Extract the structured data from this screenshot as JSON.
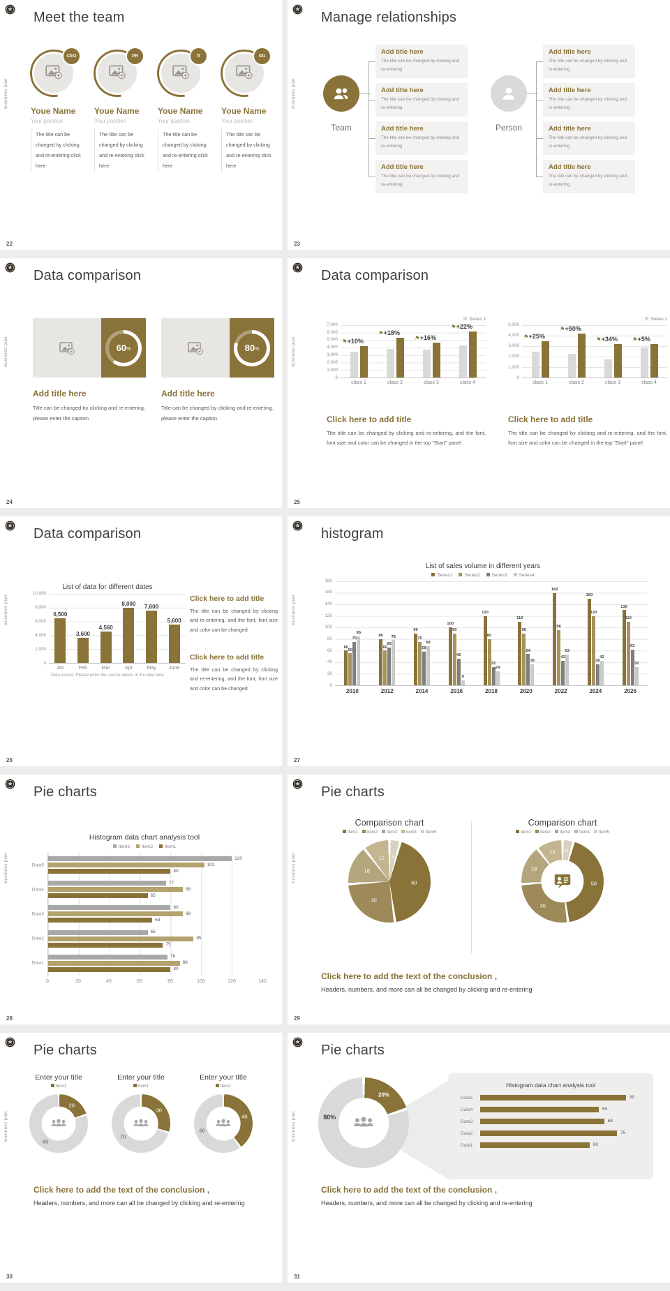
{
  "theme": {
    "accent": "#8a7339",
    "tan": "#b3a26d",
    "gold2": "#a6945e",
    "gray_light": "#d9d9d9",
    "gray_mid": "#a6a6a6",
    "gray_dark": "#7f7f7f"
  },
  "common": {
    "side_label": "Business plan"
  },
  "slides": [
    {
      "num": "22",
      "title": "Meet the team",
      "members": [
        {
          "badge": "CEO",
          "name": "Youe Name",
          "position": "Your position",
          "desc": "The title can be changed by clicking and re-entering click here"
        },
        {
          "badge": "PR",
          "name": "Youe Name",
          "position": "Your position",
          "desc": "The title can be changed by clicking and re-entering click here"
        },
        {
          "badge": "IT",
          "name": "Youe Name",
          "position": "Your position",
          "desc": "The title can be changed by clicking and re-entering click here"
        },
        {
          "badge": "GD",
          "name": "Youe Name",
          "position": "Your position",
          "desc": "The title can be changed by clicking and re-entering click here"
        }
      ]
    },
    {
      "num": "23",
      "title": "Manage relationships",
      "groups": [
        {
          "label": "Team",
          "icon": "team",
          "circle_color": "#8a7339",
          "boxes": [
            {
              "title": "Add title here",
              "text": "The title can be changed by clicking and re-entering"
            },
            {
              "title": "Add title here",
              "text": "The title can be changed by clicking and re-entering"
            },
            {
              "title": "Add title here",
              "text": "The title can be changed by clicking and re-entering"
            },
            {
              "title": "Add title here",
              "text": "The title can be changed by clicking and re-entering"
            }
          ]
        },
        {
          "label": "Person",
          "icon": "person",
          "circle_color": "#d9d9d9",
          "boxes": [
            {
              "title": "Add title here",
              "text": "The title can be changed by clicking and re-entering"
            },
            {
              "title": "Add title here",
              "text": "The title can be changed by clicking and re-entering"
            },
            {
              "title": "Add title here",
              "text": "The title can be changed by clicking and re-entering"
            },
            {
              "title": "Add title here",
              "text": "The title can be changed by clicking and re-entering"
            }
          ]
        }
      ]
    },
    {
      "num": "24",
      "title": "Data comparison",
      "cards": [
        {
          "percent": "60",
          "sign": "%",
          "heading": "Add title here",
          "caption": "Title can be changed by clicking and re-entering, please enter the caption"
        },
        {
          "percent": "80",
          "sign": "%",
          "heading": "Add title here",
          "caption": "Title can be changed by clicking and re-entering, please enter the caption"
        }
      ]
    },
    {
      "num": "25",
      "title": "Data comparison",
      "blocks": [
        {
          "heading": "Click here to add title",
          "caption": "The title can be changed by clicking and re-entering, and the font, font size and color can be changed in the top \"Start\" panel"
        },
        {
          "heading": "Click here to add title",
          "caption": "The title can be changed by clicking and re-entering, and the font, font size and color can be changed in the top \"Start\" panel"
        }
      ]
    },
    {
      "num": "26",
      "title": "Data comparison",
      "blocks": [
        {
          "heading": "Click here to add title",
          "caption": "The title can be changed by clicking and re-entering, and the font, font size and color can be changed"
        },
        {
          "heading": "Click here to add title",
          "caption": "The title can be changed by clicking and re-entering, and the font, font size and color can be changed"
        }
      ]
    },
    {
      "num": "27",
      "title": "histogram"
    },
    {
      "num": "28",
      "title": "Pie charts"
    },
    {
      "num": "29",
      "title": "Pie charts",
      "conclusion": {
        "heading": "Click here to add the text of the conclusion ,",
        "text": "Headers, numbers, and more can all be changed by clicking and re-entering"
      }
    },
    {
      "num": "30",
      "title": "Pie charts",
      "conclusion": {
        "heading": "Click here to add the text of the conclusion ,",
        "text": "Headers, numbers, and more can all be changed by clicking and re-entering"
      }
    },
    {
      "num": "31",
      "title": "Pie charts",
      "conclusion": {
        "heading": "Click here to add the text of the conclusion ,",
        "text": "Headers, numbers, and more can all be changed by clicking and re-entering"
      }
    }
  ],
  "chart_data": [
    {
      "id": "growth-left",
      "type": "bar",
      "legend": [
        {
          "label": "Series 1",
          "color": "#d9d9d9"
        }
      ],
      "categories": [
        "class 1",
        "class 2",
        "class 3",
        "class 4"
      ],
      "series": [
        {
          "name": "Series 1",
          "color": "#d9d9d9",
          "values": [
            3500,
            3800,
            3700,
            4300
          ]
        },
        {
          "name": "Highlight",
          "color": "#8a7339",
          "values": [
            4200,
            5300,
            4700,
            6200
          ]
        }
      ],
      "growth_labels": [
        "+10%",
        "+18%",
        "+16%",
        "+22%"
      ],
      "ymax": 7000,
      "yticks": [
        {
          "label": "7,000",
          "v": 7000
        },
        {
          "label": "6,000",
          "v": 6000
        },
        {
          "label": "5,000",
          "v": 5000
        },
        {
          "label": "4,000",
          "v": 4000
        },
        {
          "label": "3,000",
          "v": 3000
        },
        {
          "label": "2,000",
          "v": 2000
        },
        {
          "label": "1,000",
          "v": 1000
        },
        {
          "label": "0",
          "v": 0
        }
      ]
    },
    {
      "id": "growth-right",
      "type": "bar",
      "legend": [
        {
          "label": "Series 1",
          "color": "#d9d9d9"
        }
      ],
      "categories": [
        "class 1",
        "class 2",
        "class 3",
        "class 4"
      ],
      "series": [
        {
          "name": "Series 1",
          "color": "#d9d9d9",
          "values": [
            2500,
            2300,
            1750,
            2900
          ]
        },
        {
          "name": "Highlight",
          "color": "#8a7339",
          "values": [
            3500,
            4200,
            3200,
            3200
          ]
        }
      ],
      "growth_labels": [
        "+25%",
        "+50%",
        "+34%",
        "+5%"
      ],
      "ymax": 5000,
      "yticks": [
        {
          "label": "5,000",
          "v": 5000
        },
        {
          "label": "4,000",
          "v": 4000
        },
        {
          "label": "3,000",
          "v": 3000
        },
        {
          "label": "2,000",
          "v": 2000
        },
        {
          "label": "1,000",
          "v": 1000
        },
        {
          "label": "0",
          "v": 0
        }
      ]
    },
    {
      "id": "dates",
      "type": "bar",
      "title": "List of data for different dates",
      "categories": [
        "Jan",
        "Feb",
        "Mar",
        "Apr",
        "May",
        "June"
      ],
      "series": [
        {
          "name": "Data",
          "color": "#8a7339",
          "values": [
            6500,
            3600,
            4560,
            8000,
            7600,
            5600
          ],
          "labels": [
            "6,500",
            "3,600",
            "4,560",
            "8,000",
            "7,600",
            "5,600"
          ]
        }
      ],
      "ymax": 10000,
      "yticks": [
        {
          "label": "10,000",
          "v": 10000
        },
        {
          "label": "8,000",
          "v": 8000
        },
        {
          "label": "6,000",
          "v": 6000
        },
        {
          "label": "4,000",
          "v": 4000
        },
        {
          "label": "2,000",
          "v": 2000
        },
        {
          "label": "0",
          "v": 0
        }
      ],
      "footnote": "Data source: Please enter the source details of the data here"
    },
    {
      "id": "years",
      "type": "bar",
      "title": "List of sales volume in different years",
      "legend": [
        {
          "label": "Series1",
          "color": "#8a7339"
        },
        {
          "label": "Series2",
          "color": "#a6945e"
        },
        {
          "label": "Series3",
          "color": "#7f7f7f"
        },
        {
          "label": "Series4",
          "color": "#c9c9c9"
        }
      ],
      "categories": [
        "2010",
        "2012",
        "2014",
        "2016",
        "2018",
        "2020",
        "2022",
        "2024",
        "2026"
      ],
      "series": [
        {
          "name": "Series1",
          "color": "#8a7339",
          "values": [
            60,
            80,
            90,
            100,
            120,
            110,
            160,
            150,
            130
          ],
          "labels": [
            "60",
            "80",
            "90",
            "100",
            "120",
            "110",
            "160",
            "150",
            "130"
          ]
        },
        {
          "name": "Series2",
          "color": "#a6945e",
          "values": [
            55,
            60,
            75,
            90,
            80,
            90,
            96,
            120,
            110
          ],
          "labels": [
            "55",
            "60",
            "75",
            "90",
            "80",
            "90",
            "96",
            "120",
            "110"
          ]
        },
        {
          "name": "Series3",
          "color": "#7f7f7f",
          "values": [
            75,
            65,
            58,
            46,
            32,
            54,
            42,
            36,
            62
          ],
          "labels": [
            "75",
            "65",
            "58",
            "46",
            "32",
            "54",
            "42",
            "36",
            "62"
          ]
        },
        {
          "name": "Series4",
          "color": "#c9c9c9",
          "values": [
            85,
            78,
            68,
            9,
            24,
            36,
            53,
            42,
            32
          ],
          "labels": [
            "85",
            "78",
            "68",
            "9",
            "24",
            "36",
            "53",
            "42",
            "32"
          ]
        }
      ],
      "ymax": 180,
      "yticks": [
        {
          "label": "180",
          "v": 180
        },
        {
          "label": "160",
          "v": 160
        },
        {
          "label": "140",
          "v": 140
        },
        {
          "label": "120",
          "v": 120
        },
        {
          "label": "100",
          "v": 100
        },
        {
          "label": "80",
          "v": 80
        },
        {
          "label": "60",
          "v": 60
        },
        {
          "label": "40",
          "v": 40
        },
        {
          "label": "20",
          "v": 20
        },
        {
          "label": "0",
          "v": 0
        }
      ]
    },
    {
      "id": "analysis",
      "type": "hbar",
      "title": "Histogram data chart analysis tool",
      "legend": [
        {
          "label": "Item3",
          "color": "#a8a8a8"
        },
        {
          "label": "Item2",
          "color": "#b3a26d"
        },
        {
          "label": "Item1",
          "color": "#8a7339"
        }
      ],
      "categories": [
        "Data5",
        "Data4",
        "Data3",
        "Data2",
        "Data1"
      ],
      "series": [
        {
          "name": "Item3",
          "color": "#a8a8a8",
          "values": [
            120,
            77,
            80,
            65,
            78
          ]
        },
        {
          "name": "Item2",
          "color": "#b3a26d",
          "values": [
            102,
            88,
            88,
            95,
            86
          ]
        },
        {
          "name": "Item1",
          "color": "#8a7339",
          "values": [
            80,
            65,
            68,
            75,
            80
          ]
        }
      ],
      "xmax": 140,
      "xticks": [
        0,
        20,
        40,
        60,
        80,
        100,
        120,
        140
      ]
    },
    {
      "id": "cmp-pie",
      "type": "pie",
      "title": "Comparison chart",
      "legend": [
        {
          "label": "Item1",
          "color": "#8a7339"
        },
        {
          "label": "Item2",
          "color": "#9d8a58"
        },
        {
          "label": "Item3",
          "color": "#b4a67c"
        },
        {
          "label": "Item4",
          "color": "#c3b58f"
        },
        {
          "label": "Item5",
          "color": "#d8d1bd"
        }
      ],
      "slices": [
        {
          "label": "5",
          "value": 5,
          "color": "#d8d1bd",
          "label_color": "#fff"
        },
        {
          "label": "50",
          "value": 50,
          "color": "#8a7339",
          "label_color": "#fff"
        },
        {
          "label": "30",
          "value": 30,
          "color": "#9d8a58",
          "label_color": "#fff"
        },
        {
          "label": "18",
          "value": 18,
          "color": "#b4a67c",
          "label_color": "#fff"
        },
        {
          "label": "12",
          "value": 12,
          "color": "#c3b58f",
          "label_color": "#fff"
        }
      ]
    },
    {
      "id": "cmp-donut",
      "type": "donut",
      "title": "Comparison chart",
      "legend": [
        {
          "label": "Item1",
          "color": "#8a7339"
        },
        {
          "label": "Item2",
          "color": "#9d8a58"
        },
        {
          "label": "Item3",
          "color": "#b4a67c"
        },
        {
          "label": "Item4",
          "color": "#c3b58f"
        },
        {
          "label": "Item5",
          "color": "#d8d1bd"
        }
      ],
      "slices": [
        {
          "label": "5",
          "value": 5,
          "color": "#d8d1bd",
          "label_color": "#fff"
        },
        {
          "label": "50",
          "value": 50,
          "color": "#8a7339",
          "label_color": "#fff"
        },
        {
          "label": "30",
          "value": 30,
          "color": "#9d8a58",
          "label_color": "#fff"
        },
        {
          "label": "18",
          "value": 18,
          "color": "#b4a67c",
          "label_color": "#fff"
        },
        {
          "label": "12",
          "value": 12,
          "color": "#c3b58f",
          "label_color": "#fff"
        }
      ]
    },
    {
      "id": "enter1",
      "type": "donut",
      "title": "Enter your title",
      "legend": [
        {
          "label": "Item1",
          "color": "#8a7339"
        }
      ],
      "slices": [
        {
          "label": "20",
          "value": 20,
          "color": "#8a7339",
          "label_color": "#fff"
        },
        {
          "label": "80",
          "value": 80,
          "color": "#d9d9d9",
          "label_color": "#595959"
        }
      ]
    },
    {
      "id": "enter2",
      "type": "donut",
      "title": "Enter your title",
      "legend": [
        {
          "label": "Item1",
          "color": "#8a7339"
        }
      ],
      "slices": [
        {
          "label": "30",
          "value": 30,
          "color": "#8a7339",
          "label_color": "#fff"
        },
        {
          "label": "70",
          "value": 70,
          "color": "#d9d9d9",
          "label_color": "#595959"
        }
      ]
    },
    {
      "id": "enter3",
      "type": "donut",
      "title": "Enter your title",
      "legend": [
        {
          "label": "Item1",
          "color": "#8a7339"
        }
      ],
      "slices": [
        {
          "label": "40",
          "value": 40,
          "color": "#8a7339",
          "label_color": "#fff"
        },
        {
          "label": "60",
          "value": 60,
          "color": "#d9d9d9",
          "label_color": "#595959"
        }
      ]
    },
    {
      "id": "big-donut",
      "type": "donut",
      "slices": [
        {
          "label": "20%",
          "value": 20,
          "color": "#8a7339",
          "label_color": "#fff",
          "label_size": 8,
          "label_bold": true
        },
        {
          "label": "80%",
          "value": 80,
          "color": "#d9d9d9",
          "label_color": "#3f3f3f",
          "label_size": 9,
          "label_bold": true,
          "label_at": 0.72
        }
      ]
    },
    {
      "id": "panel-bars",
      "type": "hbar-simple",
      "title": "Histogram data chart analysis tool",
      "color": "#8a7339",
      "categories": [
        "Data5",
        "Data4",
        "Data3",
        "Data2",
        "Data1"
      ],
      "values": [
        80,
        65,
        68,
        75,
        60
      ],
      "xmax": 88
    }
  ]
}
